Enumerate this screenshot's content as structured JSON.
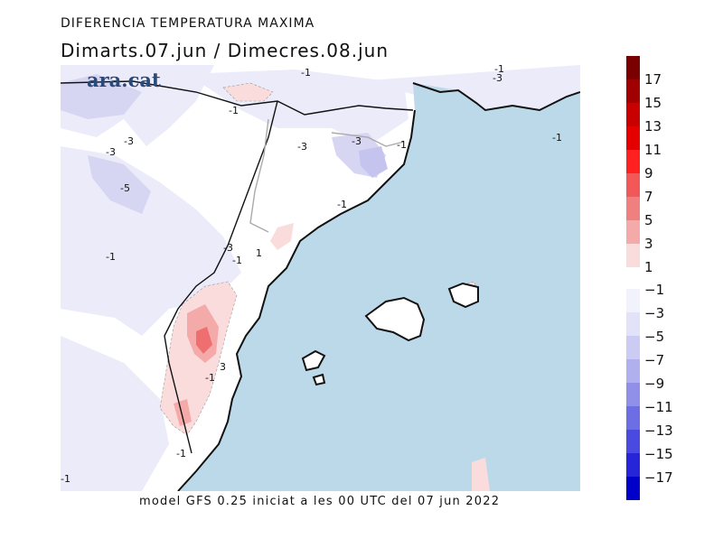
{
  "title": "DIFERENCIA TEMPERATURA MAXIMA",
  "subtitle": "Dimarts.07.jun / Dimecres.08.jun",
  "footer": "model GFS 0.25 iniciat a les 00 UTC del 07 jun 2022",
  "logo": "ara.cat",
  "colors": {
    "sea": "#bcd9ea",
    "land_neutral": "#ffffff",
    "warm_light": "#fbdcdc",
    "warm_mid": "#f5aaaa",
    "warm_strong": "#ef6e70",
    "cool_light": "#e8e8f8",
    "cool_mid": "#d2d2f2",
    "brand": "#2a4a7a"
  },
  "legend": {
    "positive": [
      {
        "label": "17",
        "color": "#7a0000"
      },
      {
        "label": "15",
        "color": "#a00000"
      },
      {
        "label": "13",
        "color": "#c80000"
      },
      {
        "label": "11",
        "color": "#e50000"
      },
      {
        "label": "9",
        "color": "#ff2020"
      },
      {
        "label": "7",
        "color": "#f25858"
      },
      {
        "label": "5",
        "color": "#f08080"
      },
      {
        "label": "3",
        "color": "#f5aaaa"
      },
      {
        "label": "1",
        "color": "#fadcdc"
      }
    ],
    "negative": [
      {
        "label": "−1",
        "color": "#f2f2fc"
      },
      {
        "label": "−3",
        "color": "#e2e2f8"
      },
      {
        "label": "−5",
        "color": "#cbcbf4"
      },
      {
        "label": "−7",
        "color": "#b0b0ee"
      },
      {
        "label": "−9",
        "color": "#9090e8"
      },
      {
        "label": "−11",
        "color": "#6e6ee4"
      },
      {
        "label": "−13",
        "color": "#4a4ae0"
      },
      {
        "label": "−15",
        "color": "#2626d8"
      },
      {
        "label": "−17",
        "color": "#0000c8"
      }
    ]
  },
  "contour_labels": [
    {
      "text": "-1",
      "icon": "contour"
    },
    {
      "text": "-3"
    },
    {
      "text": "-3"
    },
    {
      "text": "-5"
    },
    {
      "text": "-1"
    },
    {
      "text": "-3"
    },
    {
      "text": "-1"
    },
    {
      "text": "-3"
    },
    {
      "text": "-1"
    },
    {
      "text": "-1"
    },
    {
      "text": "-1"
    },
    {
      "text": "-3"
    },
    {
      "text": "-1"
    },
    {
      "text": "1"
    },
    {
      "text": "-1"
    },
    {
      "text": "3"
    },
    {
      "text": "-1"
    },
    {
      "text": "-1"
    },
    {
      "text": "-3"
    },
    {
      "text": "-1"
    }
  ]
}
